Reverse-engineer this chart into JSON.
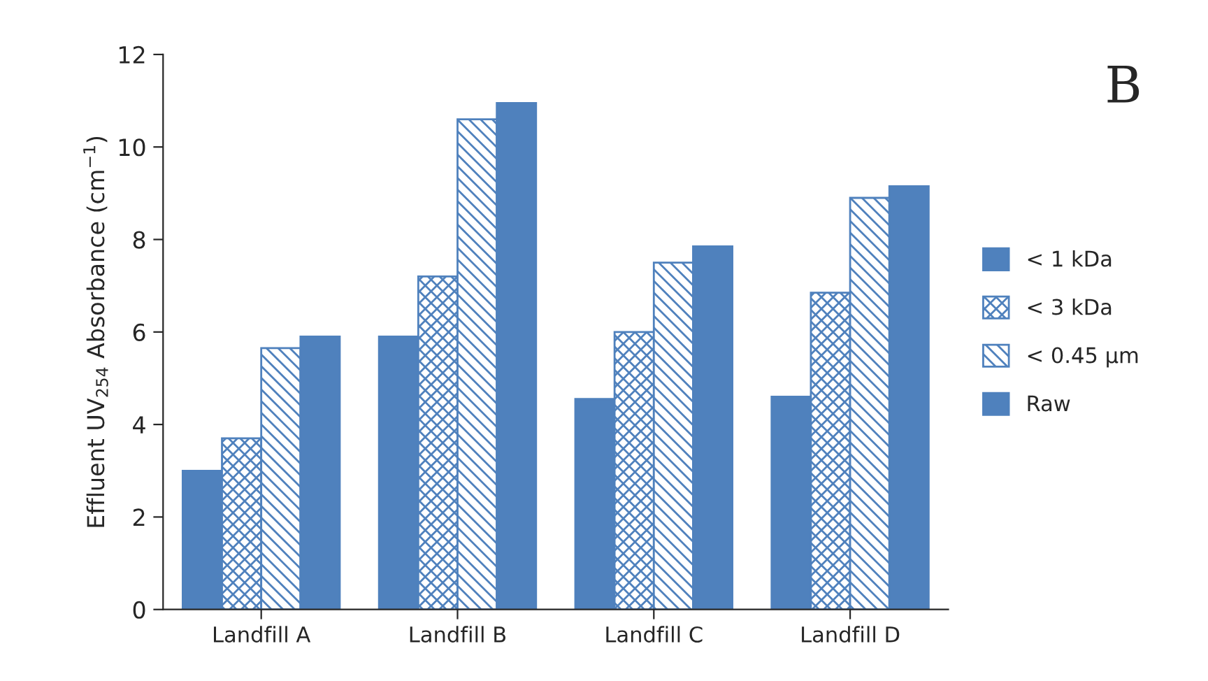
{
  "chart_data": {
    "type": "bar",
    "ylabel": "Effluent UV$_{254}$ Absorbance (cm$^{−1}$)",
    "annotations": [
      "B"
    ],
    "categories": [
      "Landfill A",
      "Landfill B",
      "Landfill C",
      "Landfill D"
    ],
    "series": [
      {
        "name": "< 1 kDa",
        "color": "#4f81bd",
        "values": [
          3.0,
          5.9,
          4.55,
          4.6
        ]
      },
      {
        "name": "< 3 kDa",
        "color": "#4f81bd",
        "values": [
          3.7,
          7.2,
          6.0,
          6.85
        ]
      },
      {
        "name": "< 0.45 µm",
        "color": "#4f81bd",
        "values": [
          5.65,
          10.6,
          7.5,
          8.9
        ]
      },
      {
        "name": "Raw",
        "color": "#4f81bd",
        "values": [
          5.9,
          10.95,
          7.85,
          9.15
        ]
      }
    ],
    "ylim": [
      0,
      12
    ],
    "yticks": [
      0,
      2,
      4,
      6,
      8,
      10,
      12
    ],
    "grid": false,
    "legend": "right"
  }
}
